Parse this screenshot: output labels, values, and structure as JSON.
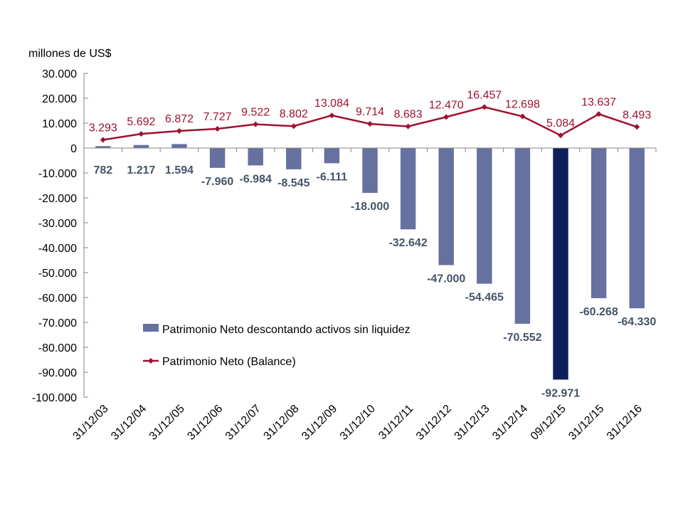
{
  "chart_data": {
    "type": "bar+line",
    "unit_label": "millones de US$",
    "categories": [
      "31/12/03",
      "31/12/04",
      "31/12/05",
      "31/12/06",
      "31/12/07",
      "31/12/08",
      "31/12/09",
      "31/12/10",
      "31/12/11",
      "31/12/12",
      "31/12/13",
      "31/12/14",
      "09/12/15",
      "31/12/15",
      "31/12/16"
    ],
    "ylim": [
      -100000,
      30000
    ],
    "yticks": [
      30000,
      20000,
      10000,
      0,
      -10000,
      -20000,
      -30000,
      -40000,
      -50000,
      -60000,
      -70000,
      -80000,
      -90000,
      -100000
    ],
    "ytick_labels": [
      "30.000",
      "20.000",
      "10.000",
      "0",
      "-10.000",
      "-20.000",
      "-30.000",
      "-40.000",
      "-50.000",
      "-60.000",
      "-70.000",
      "-80.000",
      "-90.000",
      "-100.000"
    ],
    "grid": false,
    "legend_position": "lower-left inside",
    "series": [
      {
        "name": "Patrimonio Neto descontando activos sin liquidez",
        "type": "bar",
        "color": "#67719f",
        "highlight_color": "#0c1f5b",
        "highlight_index": 12,
        "values": [
          782,
          1217,
          1594,
          -7960,
          -6984,
          -8545,
          -6111,
          -18000,
          -32642,
          -47000,
          -54465,
          -70552,
          -92971,
          -60268,
          -64330
        ],
        "labels": [
          "782",
          "1.217",
          "1.594",
          "-7.960",
          "-6.984",
          "-8.545",
          "-6.111",
          "-18.000",
          "-32.642",
          "-47.000",
          "-54.465",
          "-70.552",
          "-92.971",
          "-60.268",
          "-64.330"
        ],
        "label_color": "#44546a"
      },
      {
        "name": "Patrimonio Neto (Balance)",
        "type": "line",
        "color": "#a0112e",
        "values": [
          3293,
          5692,
          6872,
          7727,
          9522,
          8802,
          13084,
          9714,
          8683,
          12470,
          16457,
          12698,
          5084,
          13637,
          8493
        ],
        "labels": [
          "3.293",
          "5.692",
          "6.872",
          "7.727",
          "9.522",
          "8.802",
          "13.084",
          "9.714",
          "8.683",
          "12.470",
          "16.457",
          "12.698",
          "5.084",
          "13.637",
          "8.493"
        ]
      }
    ]
  }
}
